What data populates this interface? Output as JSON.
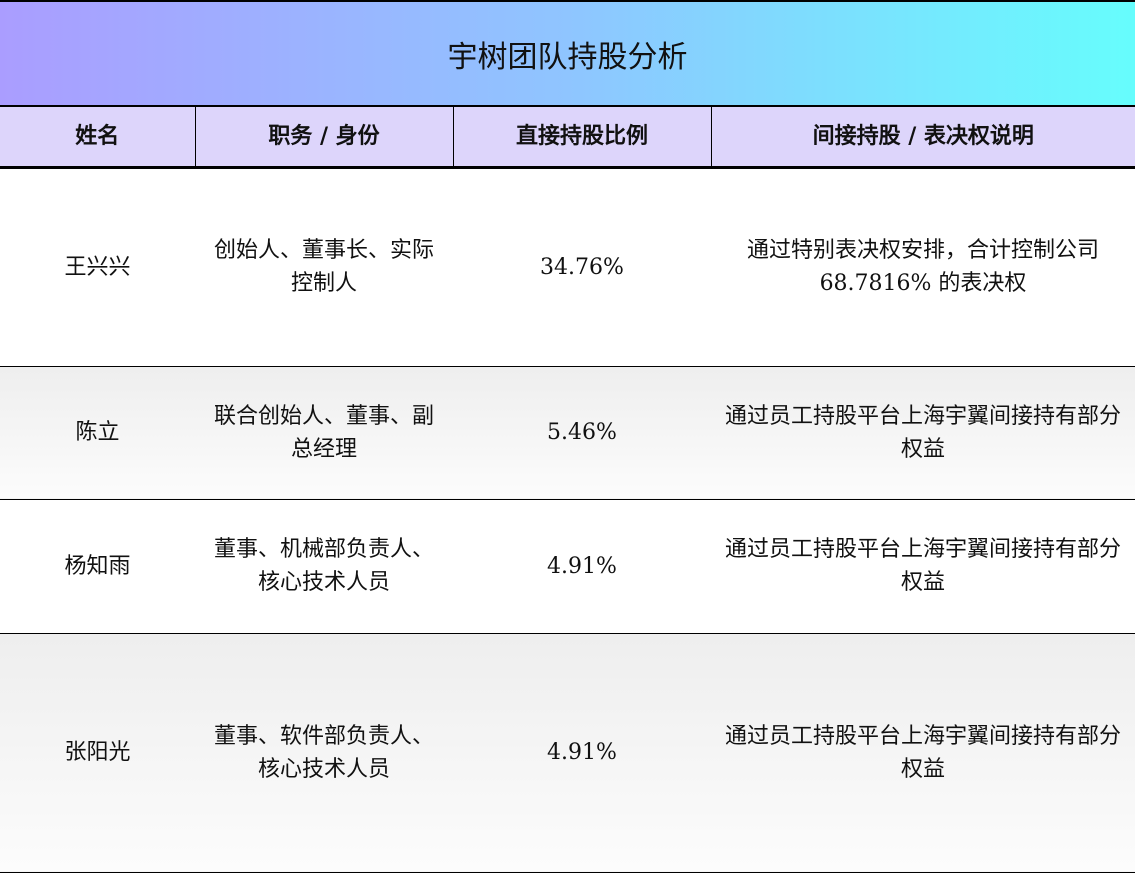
{
  "title": "宇树团队持股分析",
  "headers": [
    "姓名",
    "职务 / 身份",
    "直接持股比例",
    "间接持股 / 表决权说明"
  ],
  "rows": [
    {
      "name": "王兴兴",
      "role": "创始人、董事长、实际控制人",
      "direct": "34.76%",
      "indirect": "通过特别表决权安排，合计控制公司 68.7816% 的表决权"
    },
    {
      "name": "陈立",
      "role": "联合创始人、董事、副总经理",
      "direct": "5.46%",
      "indirect": "通过员工持股平台上海宇翼间接持有部分权益"
    },
    {
      "name": "杨知雨",
      "role": "董事、机械部负责人、核心技术人员",
      "direct": "4.91%",
      "indirect": "通过员工持股平台上海宇翼间接持有部分权益"
    },
    {
      "name": "张阳光",
      "role": "董事、软件部负责人、核心技术人员",
      "direct": "4.91%",
      "indirect": "通过员工持股平台上海宇翼间接持有部分权益"
    }
  ]
}
